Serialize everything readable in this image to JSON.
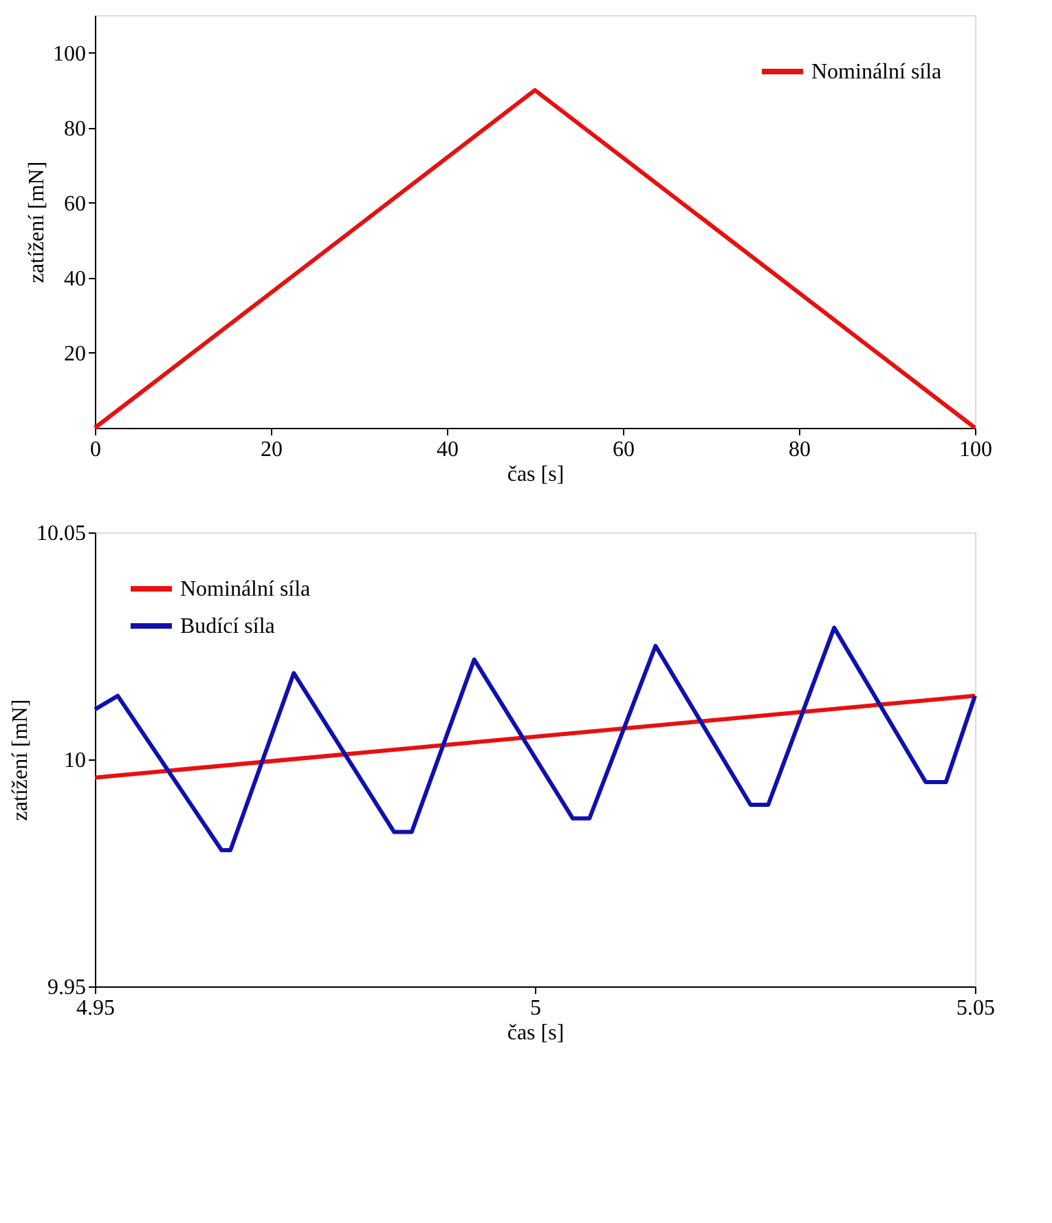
{
  "chart_data": [
    {
      "type": "line",
      "xlabel": "čas [s]",
      "ylabel": "zatížení [mN]",
      "xlim": [
        0,
        100
      ],
      "ylim": [
        0,
        110
      ],
      "xticks": [
        0,
        20,
        40,
        60,
        80,
        100
      ],
      "yticks": [
        20,
        40,
        60,
        80,
        100
      ],
      "grid": false,
      "legend": "top right",
      "series": [
        {
          "name": "Nominální síla",
          "color": "#e81010",
          "x": [
            0,
            50,
            100
          ],
          "values": [
            0,
            90,
            0
          ]
        }
      ]
    },
    {
      "type": "line",
      "xlabel": "čas [s]",
      "ylabel": "zatížení [mN]",
      "xlim": [
        4.95,
        5.05
      ],
      "ylim": [
        9.95,
        10.05
      ],
      "xticks": [
        4.95,
        5,
        5.05
      ],
      "yticks": [
        9.95,
        10,
        10.05
      ],
      "grid": false,
      "legend": "top left",
      "series": [
        {
          "name": "Nominální síla",
          "color": "#e81010",
          "x": [
            4.95,
            5.05
          ],
          "values": [
            9.996,
            10.014
          ]
        },
        {
          "name": "Budící síla",
          "color": "#1010b0",
          "x": [
            4.95,
            4.9526,
            4.9644,
            4.9654,
            4.9726,
            4.984,
            4.986,
            4.9931,
            5.0043,
            5.0062,
            5.0137,
            5.0245,
            5.0265,
            5.034,
            5.0444,
            5.0467,
            5.05
          ],
          "values": [
            10.011,
            10.014,
            9.98,
            9.98,
            10.019,
            9.984,
            9.984,
            10.022,
            9.987,
            9.987,
            10.025,
            9.99,
            9.99,
            10.029,
            9.995,
            9.995,
            10.014
          ]
        }
      ]
    }
  ]
}
